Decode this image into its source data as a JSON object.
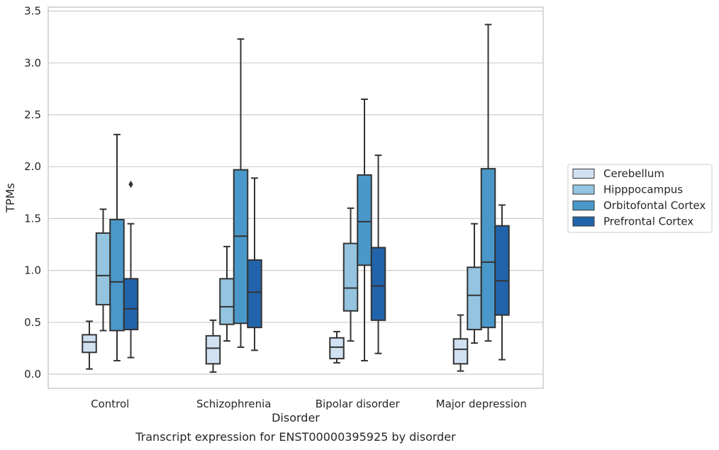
{
  "caption": "Transcript expression for ENST00000395925 by disorder",
  "chart_data": {
    "type": "box",
    "title": "",
    "xlabel": "Disorder",
    "ylabel": "TPMs",
    "ylim": [
      -0.14,
      3.55
    ],
    "yticks": [
      0.0,
      0.5,
      1.0,
      1.5,
      2.0,
      2.5,
      3.0,
      3.5
    ],
    "ytick_labels": [
      "0.0",
      "0.5",
      "1.0",
      "1.5",
      "2.0",
      "2.5",
      "3.0",
      "3.5"
    ],
    "grid": "horizontal",
    "legend_position": "right",
    "categories": [
      "Control",
      "Schizophrenia",
      "Bipolar disorder",
      "Major depression"
    ],
    "series": [
      {
        "name": "Cerebellum",
        "color": "#d0e1f2",
        "boxes": [
          {
            "whisker_low": 0.05,
            "q1": 0.21,
            "median": 0.31,
            "q3": 0.38,
            "whisker_high": 0.51,
            "outliers": []
          },
          {
            "whisker_low": 0.02,
            "q1": 0.1,
            "median": 0.25,
            "q3": 0.37,
            "whisker_high": 0.52,
            "outliers": []
          },
          {
            "whisker_low": 0.11,
            "q1": 0.15,
            "median": 0.26,
            "q3": 0.35,
            "whisker_high": 0.41,
            "outliers": []
          },
          {
            "whisker_low": 0.03,
            "q1": 0.1,
            "median": 0.24,
            "q3": 0.34,
            "whisker_high": 0.57,
            "outliers": []
          }
        ]
      },
      {
        "name": "Hipppocampus",
        "color": "#94c4df",
        "boxes": [
          {
            "whisker_low": 0.42,
            "q1": 0.67,
            "median": 0.95,
            "q3": 1.36,
            "whisker_high": 1.59,
            "outliers": []
          },
          {
            "whisker_low": 0.32,
            "q1": 0.48,
            "median": 0.65,
            "q3": 0.92,
            "whisker_high": 1.23,
            "outliers": []
          },
          {
            "whisker_low": 0.32,
            "q1": 0.61,
            "median": 0.83,
            "q3": 1.26,
            "whisker_high": 1.6,
            "outliers": []
          },
          {
            "whisker_low": 0.3,
            "q1": 0.43,
            "median": 0.76,
            "q3": 1.03,
            "whisker_high": 1.45,
            "outliers": []
          }
        ]
      },
      {
        "name": "Orbitofontal Cortex",
        "color": "#4a98c9",
        "boxes": [
          {
            "whisker_low": 0.13,
            "q1": 0.42,
            "median": 0.89,
            "q3": 1.49,
            "whisker_high": 2.31,
            "outliers": []
          },
          {
            "whisker_low": 0.26,
            "q1": 0.49,
            "median": 1.33,
            "q3": 1.97,
            "whisker_high": 3.23,
            "outliers": []
          },
          {
            "whisker_low": 0.13,
            "q1": 1.05,
            "median": 1.47,
            "q3": 1.92,
            "whisker_high": 2.65,
            "outliers": []
          },
          {
            "whisker_low": 0.32,
            "q1": 0.45,
            "median": 1.08,
            "q3": 1.98,
            "whisker_high": 3.37,
            "outliers": []
          }
        ]
      },
      {
        "name": "Prefrontal Cortex",
        "color": "#2164ab",
        "boxes": [
          {
            "whisker_low": 0.16,
            "q1": 0.43,
            "median": 0.63,
            "q3": 0.92,
            "whisker_high": 1.45,
            "outliers": [
              1.83
            ]
          },
          {
            "whisker_low": 0.23,
            "q1": 0.45,
            "median": 0.79,
            "q3": 1.1,
            "whisker_high": 1.89,
            "outliers": []
          },
          {
            "whisker_low": 0.2,
            "q1": 0.52,
            "median": 0.85,
            "q3": 1.22,
            "whisker_high": 2.11,
            "outliers": []
          },
          {
            "whisker_low": 0.14,
            "q1": 0.57,
            "median": 0.9,
            "q3": 1.43,
            "whisker_high": 1.63,
            "outliers": []
          }
        ]
      }
    ]
  }
}
